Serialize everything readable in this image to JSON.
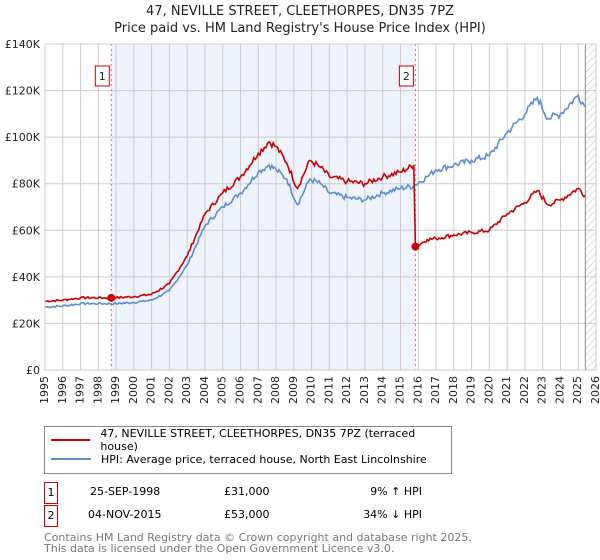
{
  "chart_data": {
    "type": "line",
    "title": "47, NEVILLE STREET, CLEETHORPES, DN35 7PZ",
    "subtitle": "Price paid vs. HM Land Registry's House Price Index (HPI)",
    "xlim": [
      1995,
      2026
    ],
    "ylim": [
      0,
      140000
    ],
    "x_ticks": [
      "1995",
      "1996",
      "1997",
      "1998",
      "1999",
      "2000",
      "2001",
      "2002",
      "2003",
      "2004",
      "2005",
      "2006",
      "2007",
      "2008",
      "2009",
      "2010",
      "2011",
      "2012",
      "2013",
      "2014",
      "2015",
      "2016",
      "2017",
      "2018",
      "2019",
      "2020",
      "2021",
      "2022",
      "2023",
      "2024",
      "2025",
      "2026"
    ],
    "y_ticks": [
      {
        "v": 0,
        "label": "£0"
      },
      {
        "v": 20000,
        "label": "£20K"
      },
      {
        "v": 40000,
        "label": "£40K"
      },
      {
        "v": 60000,
        "label": "£60K"
      },
      {
        "v": 80000,
        "label": "£80K"
      },
      {
        "v": 100000,
        "label": "£100K"
      },
      {
        "v": 120000,
        "label": "£120K"
      },
      {
        "v": 140000,
        "label": "£140K"
      }
    ],
    "grid": true,
    "series": [
      {
        "name": "47, NEVILLE STREET, CLEETHORPES, DN35 7PZ (terraced house)",
        "color": "#cc0000",
        "points": [
          [
            1995,
            29500
          ],
          [
            1996,
            30000
          ],
          [
            1997,
            31000
          ],
          [
            1998,
            31000
          ],
          [
            1998.73,
            31000
          ],
          [
            1999,
            31000
          ],
          [
            2000,
            31500
          ],
          [
            2001,
            32500
          ],
          [
            2002,
            37000
          ],
          [
            2003,
            49000
          ],
          [
            2004,
            67000
          ],
          [
            2005,
            76000
          ],
          [
            2006,
            83000
          ],
          [
            2007,
            93000
          ],
          [
            2007.6,
            98000
          ],
          [
            2008,
            96000
          ],
          [
            2008.6,
            89000
          ],
          [
            2009.2,
            78000
          ],
          [
            2009.9,
            90000
          ],
          [
            2010.5,
            87000
          ],
          [
            2011,
            83000
          ],
          [
            2012,
            81000
          ],
          [
            2013,
            80000
          ],
          [
            2014,
            83000
          ],
          [
            2015,
            85000
          ],
          [
            2015.75,
            88000
          ],
          [
            2015.84,
            53000
          ],
          [
            2016.5,
            56000
          ],
          [
            2017,
            56500
          ],
          [
            2018,
            58000
          ],
          [
            2019,
            59000
          ],
          [
            2020,
            60000
          ],
          [
            2021,
            67000
          ],
          [
            2022,
            72000
          ],
          [
            2022.7,
            77000
          ],
          [
            2023.3,
            71000
          ],
          [
            2024,
            73000
          ],
          [
            2025,
            78000
          ],
          [
            2025.4,
            75000
          ]
        ]
      },
      {
        "name": "HPI: Average price, terraced house, North East Lincolnshire",
        "color": "#5b8fd0",
        "points": [
          [
            1995,
            27000
          ],
          [
            1996,
            27500
          ],
          [
            1997,
            28500
          ],
          [
            1998,
            28500
          ],
          [
            1999,
            28500
          ],
          [
            2000,
            29000
          ],
          [
            2001,
            30000
          ],
          [
            2002,
            34000
          ],
          [
            2003,
            45000
          ],
          [
            2004,
            62000
          ],
          [
            2005,
            70000
          ],
          [
            2006,
            76000
          ],
          [
            2007,
            85000
          ],
          [
            2007.6,
            88000
          ],
          [
            2008,
            86000
          ],
          [
            2008.6,
            82000
          ],
          [
            2009.2,
            71000
          ],
          [
            2009.9,
            82000
          ],
          [
            2010.5,
            80000
          ],
          [
            2011,
            76000
          ],
          [
            2012,
            74000
          ],
          [
            2013,
            73000
          ],
          [
            2014,
            76000
          ],
          [
            2015,
            78000
          ],
          [
            2015.75,
            79000
          ],
          [
            2016.5,
            83000
          ],
          [
            2017,
            86000
          ],
          [
            2018,
            88000
          ],
          [
            2019,
            90000
          ],
          [
            2020,
            92000
          ],
          [
            2021,
            102000
          ],
          [
            2022,
            110000
          ],
          [
            2022.7,
            117000
          ],
          [
            2023.3,
            108000
          ],
          [
            2024,
            110000
          ],
          [
            2025,
            118000
          ],
          [
            2025.4,
            113000
          ]
        ]
      }
    ],
    "sales": [
      {
        "id": "1",
        "x": 1998.73,
        "y": 31000
      },
      {
        "id": "2",
        "x": 2015.84,
        "y": 53000
      }
    ],
    "shaded_range": [
      1998.73,
      2015.84
    ],
    "hatched_from": 2025.4
  },
  "legend": {
    "items": [
      "47, NEVILLE STREET, CLEETHORPES, DN35 7PZ (terraced house)",
      "HPI: Average price, terraced house, North East Lincolnshire"
    ]
  },
  "transactions": [
    {
      "id": "1",
      "date": "25-SEP-1998",
      "price": "£31,000",
      "hpi": "9% ↑ HPI"
    },
    {
      "id": "2",
      "date": "04-NOV-2015",
      "price": "£53,000",
      "hpi": "34% ↓ HPI"
    }
  ],
  "footer": {
    "line1": "Contains HM Land Registry data © Crown copyright and database right 2025.",
    "line2": "This data is licensed under the Open Government Licence v3.0."
  }
}
